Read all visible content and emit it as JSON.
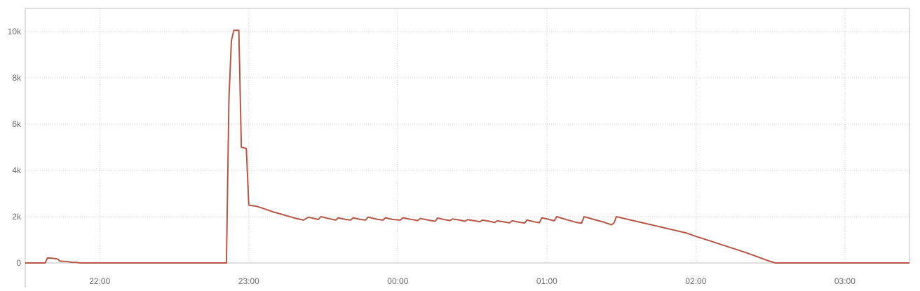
{
  "chart_data": {
    "type": "line",
    "title": "",
    "xlabel": "",
    "ylabel": "",
    "grid": true,
    "legend": "none",
    "xlim": [
      "21:30",
      "03:26"
    ],
    "ylim": [
      0,
      11000
    ],
    "x_ticks": [
      "22:00",
      "23:00",
      "00:00",
      "01:00",
      "02:00",
      "03:00"
    ],
    "y_ticks": [
      {
        "value": 0,
        "label": "0"
      },
      {
        "value": 2000,
        "label": "2k"
      },
      {
        "value": 4000,
        "label": "4k"
      },
      {
        "value": 6000,
        "label": "6k"
      },
      {
        "value": 8000,
        "label": "8k"
      },
      {
        "value": 10000,
        "label": "10k"
      }
    ],
    "series": [
      {
        "color": "#b55744",
        "points": [
          [
            "21:30",
            0
          ],
          [
            "21:35",
            0
          ],
          [
            "21:38",
            0
          ],
          [
            "21:39",
            220
          ],
          [
            "21:41",
            200
          ],
          [
            "21:43",
            170
          ],
          [
            "21:44",
            80
          ],
          [
            "21:47",
            60
          ],
          [
            "21:49",
            20
          ],
          [
            "21:50",
            30
          ],
          [
            "21:52",
            0
          ],
          [
            "22:00",
            0
          ],
          [
            "22:30",
            0
          ],
          [
            "22:50",
            0
          ],
          [
            "22:51",
            0
          ],
          [
            "22:52",
            7100
          ],
          [
            "22:53",
            9600
          ],
          [
            "22:54",
            10050
          ],
          [
            "22:56",
            10050
          ],
          [
            "22:57",
            5000
          ],
          [
            "22:59",
            4950
          ],
          [
            "23:00",
            2500
          ],
          [
            "23:03",
            2450
          ],
          [
            "23:06",
            2350
          ],
          [
            "23:10",
            2200
          ],
          [
            "23:14",
            2080
          ],
          [
            "23:18",
            1950
          ],
          [
            "23:22",
            1850
          ],
          [
            "23:24",
            1980
          ],
          [
            "23:28",
            1880
          ],
          [
            "23:29",
            2000
          ],
          [
            "23:33",
            1900
          ],
          [
            "23:35",
            1850
          ],
          [
            "23:36",
            1950
          ],
          [
            "23:39",
            1880
          ],
          [
            "23:41",
            1850
          ],
          [
            "23:42",
            1950
          ],
          [
            "23:45",
            1880
          ],
          [
            "23:47",
            1850
          ],
          [
            "23:48",
            1980
          ],
          [
            "23:52",
            1880
          ],
          [
            "23:54",
            1850
          ],
          [
            "23:55",
            1950
          ],
          [
            "23:58",
            1880
          ],
          [
            "24:01",
            1850
          ],
          [
            "24:02",
            1950
          ],
          [
            "24:06",
            1870
          ],
          [
            "24:08",
            1830
          ],
          [
            "24:09",
            1920
          ],
          [
            "24:12",
            1860
          ],
          [
            "24:15",
            1800
          ],
          [
            "24:16",
            1940
          ],
          [
            "24:19",
            1870
          ],
          [
            "24:21",
            1830
          ],
          [
            "24:22",
            1900
          ],
          [
            "24:25",
            1850
          ],
          [
            "24:27",
            1800
          ],
          [
            "24:28",
            1870
          ],
          [
            "24:31",
            1820
          ],
          [
            "24:33",
            1780
          ],
          [
            "24:34",
            1850
          ],
          [
            "24:37",
            1800
          ],
          [
            "24:39",
            1750
          ],
          [
            "24:40",
            1820
          ],
          [
            "24:43",
            1770
          ],
          [
            "24:45",
            1730
          ],
          [
            "24:46",
            1820
          ],
          [
            "24:49",
            1760
          ],
          [
            "24:51",
            1720
          ],
          [
            "24:52",
            1850
          ],
          [
            "24:55",
            1780
          ],
          [
            "24:57",
            1740
          ],
          [
            "24:58",
            1950
          ],
          [
            "25:01",
            1880
          ],
          [
            "25:03",
            1820
          ],
          [
            "25:04",
            2000
          ],
          [
            "25:08",
            1870
          ],
          [
            "25:12",
            1750
          ],
          [
            "25:14",
            1720
          ],
          [
            "25:15",
            2000
          ],
          [
            "25:19",
            1880
          ],
          [
            "25:23",
            1760
          ],
          [
            "25:26",
            1650
          ],
          [
            "25:27",
            1720
          ],
          [
            "25:28",
            2000
          ],
          [
            "25:32",
            1900
          ],
          [
            "25:36",
            1800
          ],
          [
            "25:40",
            1700
          ],
          [
            "25:44",
            1600
          ],
          [
            "25:48",
            1500
          ],
          [
            "25:52",
            1400
          ],
          [
            "25:56",
            1300
          ],
          [
            "26:00",
            1150
          ],
          [
            "26:05",
            980
          ],
          [
            "26:10",
            800
          ],
          [
            "26:15",
            630
          ],
          [
            "26:20",
            450
          ],
          [
            "26:25",
            260
          ],
          [
            "26:29",
            100
          ],
          [
            "26:32",
            0
          ],
          [
            "26:40",
            0
          ],
          [
            "27:00",
            0
          ],
          [
            "27:26",
            0
          ]
        ]
      }
    ]
  }
}
